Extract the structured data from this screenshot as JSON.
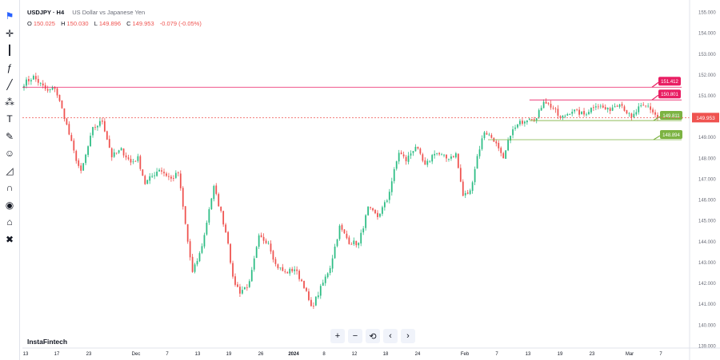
{
  "symbol": "USDJPY",
  "timeframe": "H4",
  "symbol_line": "USDJPY · H4",
  "description": "US Dollar vs Japanese Yen",
  "ohlc": {
    "o_label": "O",
    "o": "150.025",
    "h_label": "H",
    "h": "150.030",
    "l_label": "L",
    "l": "149.896",
    "c_label": "C",
    "c": "149.953",
    "change": "-0.079 (-0.05%)"
  },
  "watermark": "InstaFintech",
  "colors": {
    "up": "#26a69a",
    "up_candle": "#2ebd85",
    "down": "#ef5350",
    "resistance": "#e91e63",
    "support": "#7cb342",
    "current": "#ef5350"
  },
  "toolbar_icons": [
    "flag-icon",
    "crosshair-icon",
    "candles-icon",
    "fx-icon",
    "lines-icon",
    "pattern-icon",
    "text-icon",
    "brush-icon",
    "smile-icon",
    "ruler-icon",
    "magnet-icon",
    "eye-icon",
    "lock-icon",
    "trash-icon"
  ],
  "nav_buttons": [
    "+",
    "−",
    "⟲",
    "‹",
    "›"
  ],
  "chart_data": {
    "type": "candlestick",
    "y_range": [
      138.9,
      155.25
    ],
    "y_ticks": [
      155.0,
      154.0,
      153.0,
      152.0,
      151.0,
      150.0,
      149.0,
      148.0,
      147.0,
      146.0,
      145.0,
      144.0,
      143.0,
      142.0,
      141.0,
      140.0,
      139.0
    ],
    "y_tick_labels": [
      "155.000",
      "154.000",
      "153.000",
      "152.000",
      "151.000",
      "150.000",
      "149.000",
      "148.000",
      "147.000",
      "146.000",
      "145.000",
      "144.000",
      "143.000",
      "142.000",
      "141.000",
      "140.000",
      "139.000"
    ],
    "x_tick_labels": [
      "13",
      "17",
      "23",
      "Dec",
      "7",
      "13",
      "19",
      "26",
      "2024",
      "8",
      "12",
      "18",
      "24",
      "Feb",
      "7",
      "13",
      "19",
      "23",
      "Mar",
      "7"
    ],
    "path_points": [
      [
        0,
        151.6
      ],
      [
        4,
        151.9
      ],
      [
        10,
        151.2
      ],
      [
        13,
        151.4
      ],
      [
        17,
        150.0
      ],
      [
        21,
        148.3
      ],
      [
        24,
        147.3
      ],
      [
        29,
        149.4
      ],
      [
        33,
        149.8
      ],
      [
        37,
        148.1
      ],
      [
        41,
        148.4
      ],
      [
        45,
        147.8
      ],
      [
        48,
        148.0
      ],
      [
        51,
        146.8
      ],
      [
        57,
        147.5
      ],
      [
        62,
        147.0
      ],
      [
        65,
        147.3
      ],
      [
        69,
        144.0
      ],
      [
        71,
        142.5
      ],
      [
        74,
        143.4
      ],
      [
        76,
        144.3
      ],
      [
        78,
        145.6
      ],
      [
        80,
        146.6
      ],
      [
        83,
        145.4
      ],
      [
        86,
        144.0
      ],
      [
        88,
        142.2
      ],
      [
        91,
        141.6
      ],
      [
        95,
        142.0
      ],
      [
        99,
        144.2
      ],
      [
        103,
        144.0
      ],
      [
        106,
        142.9
      ],
      [
        110,
        142.5
      ],
      [
        114,
        142.7
      ],
      [
        118,
        141.9
      ],
      [
        121,
        140.8
      ],
      [
        124,
        141.5
      ],
      [
        129,
        142.8
      ],
      [
        133,
        144.7
      ],
      [
        137,
        144.0
      ],
      [
        141,
        143.9
      ],
      [
        145,
        145.6
      ],
      [
        149,
        145.2
      ],
      [
        153,
        146.0
      ],
      [
        158,
        148.3
      ],
      [
        161,
        147.9
      ],
      [
        165,
        148.6
      ],
      [
        169,
        147.6
      ],
      [
        173,
        148.3
      ],
      [
        178,
        148.0
      ],
      [
        182,
        148.2
      ],
      [
        185,
        146.2
      ],
      [
        188,
        146.4
      ],
      [
        191,
        148.1
      ],
      [
        194,
        149.3
      ],
      [
        198,
        148.9
      ],
      [
        202,
        147.9
      ],
      [
        205,
        149.2
      ],
      [
        209,
        149.7
      ],
      [
        213,
        150.0
      ],
      [
        216,
        149.9
      ],
      [
        219,
        150.8
      ],
      [
        223,
        150.4
      ],
      [
        226,
        149.9
      ],
      [
        231,
        150.3
      ],
      [
        236,
        150.1
      ],
      [
        241,
        150.6
      ],
      [
        246,
        150.3
      ],
      [
        251,
        150.7
      ],
      [
        256,
        149.9
      ],
      [
        259,
        150.4
      ],
      [
        263,
        150.5
      ],
      [
        267,
        149.96
      ]
    ],
    "candle_count": 268,
    "current_price": 149.953,
    "current_price_label": "149.953",
    "levels": [
      {
        "name": "resistance-2",
        "value": 151.412,
        "label": "151.412",
        "kind": "resistance"
      },
      {
        "name": "resistance-1",
        "value": 150.801,
        "label": "150.801",
        "kind": "resistance"
      },
      {
        "name": "support-1",
        "value": 149.811,
        "label": "149.811",
        "kind": "support"
      },
      {
        "name": "support-2",
        "value": 148.894,
        "label": "148.894",
        "kind": "support"
      }
    ],
    "grid": false
  }
}
